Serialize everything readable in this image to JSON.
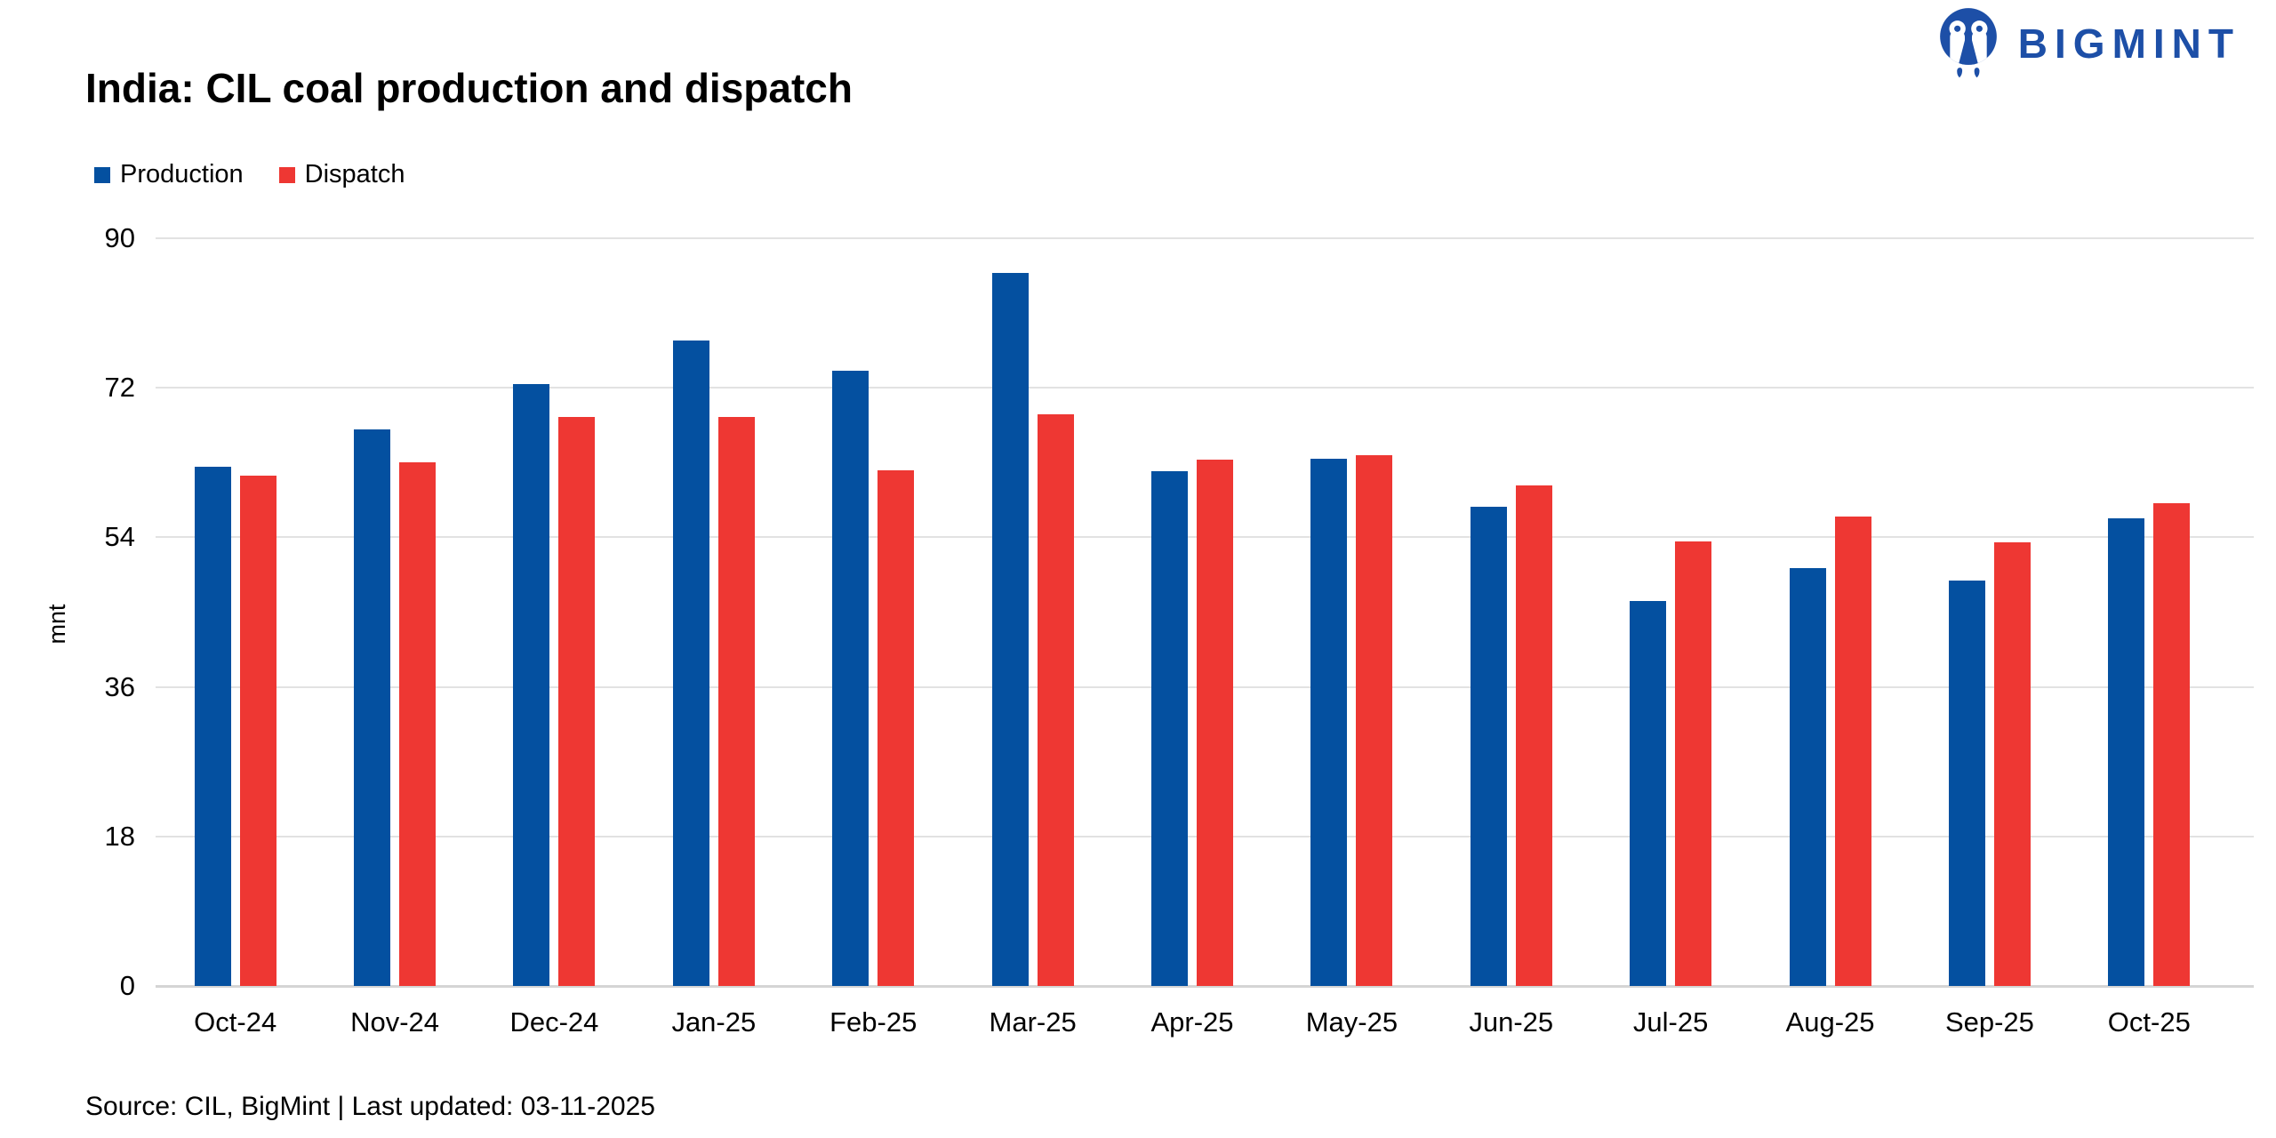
{
  "logo": {
    "text": "BIGMINT",
    "color": "#1d4fa7"
  },
  "title": "India: CIL coal production and dispatch",
  "footer": {
    "source": "Source: CIL, BigMint | Last updated: 03-11-2025"
  },
  "chart_data": {
    "type": "bar",
    "title": "India: CIL coal production and dispatch",
    "xlabel": "",
    "ylabel": "mnt",
    "ylim": [
      0,
      90
    ],
    "yticks": [
      0,
      18,
      36,
      54,
      72,
      90
    ],
    "grid": true,
    "legend_position": "top-left",
    "categories": [
      "Oct-24",
      "Nov-24",
      "Dec-24",
      "Jan-25",
      "Feb-25",
      "Mar-25",
      "Apr-25",
      "May-25",
      "Jun-25",
      "Jul-25",
      "Aug-25",
      "Sep-25",
      "Oct-25"
    ],
    "series": [
      {
        "name": "Production",
        "color": "#0450a0",
        "values": [
          62.5,
          67.0,
          72.4,
          77.7,
          74.1,
          85.8,
          62.0,
          63.5,
          57.7,
          46.3,
          50.3,
          48.8,
          56.3
        ]
      },
      {
        "name": "Dispatch",
        "color": "#ee3733",
        "values": [
          61.4,
          63.0,
          68.5,
          68.5,
          62.1,
          68.8,
          63.4,
          63.9,
          60.3,
          53.5,
          56.5,
          53.4,
          58.1
        ]
      }
    ]
  }
}
